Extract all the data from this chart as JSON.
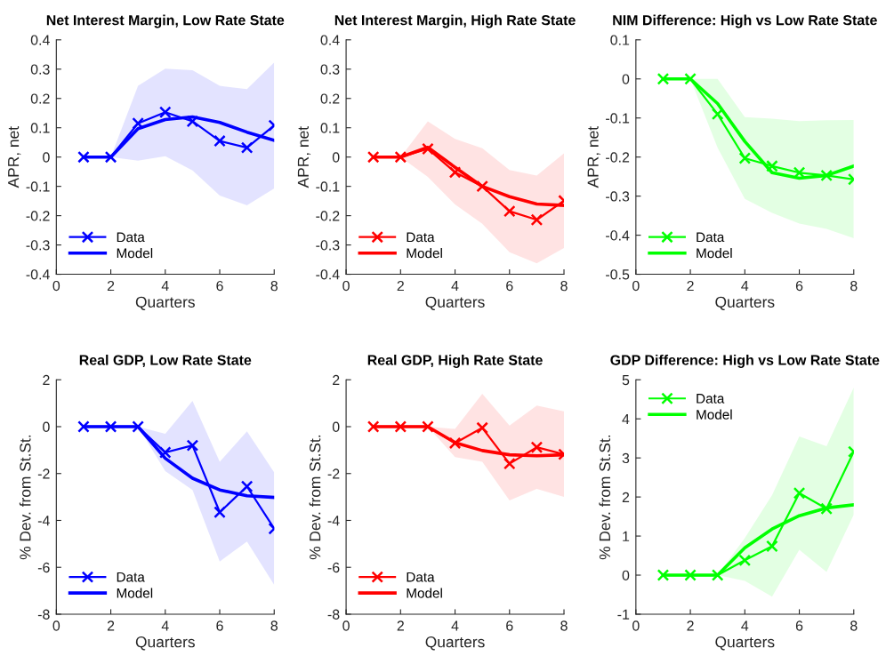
{
  "chart_data": [
    {
      "type": "line",
      "title": "Net Interest Margin, Low Rate State",
      "xlabel": "Quarters",
      "ylabel": "APR, net",
      "x": [
        1,
        2,
        3,
        4,
        5,
        6,
        7,
        8
      ],
      "xlim": [
        0,
        8
      ],
      "xticks": [
        0,
        2,
        4,
        6,
        8
      ],
      "ylim": [
        -0.4,
        0.4
      ],
      "yticks": [
        -0.4,
        -0.3,
        -0.2,
        -0.1,
        0,
        0.1,
        0.2,
        0.3,
        0.4
      ],
      "legend": "bottom left",
      "grid": false,
      "series": [
        {
          "name": "Data",
          "color": "#0000ff",
          "marker": "cross",
          "values": [
            0,
            0,
            0.115,
            0.153,
            0.122,
            0.055,
            0.032,
            0.108
          ]
        },
        {
          "name": "Model",
          "color": "#0000ff",
          "marker": "none",
          "values": [
            0,
            0,
            0.097,
            0.128,
            0.137,
            0.118,
            0.085,
            0.057
          ],
          "lower": [
            null,
            0,
            -0.012,
            0.003,
            -0.046,
            -0.131,
            -0.165,
            -0.107
          ],
          "upper": [
            null,
            0,
            0.243,
            0.302,
            0.296,
            0.243,
            0.232,
            0.323
          ]
        }
      ]
    },
    {
      "type": "line",
      "title": "Net Interest Margin, High Rate State",
      "xlabel": "Quarters",
      "ylabel": "APR, net",
      "x": [
        1,
        2,
        3,
        4,
        5,
        6,
        7,
        8
      ],
      "xlim": [
        0,
        8
      ],
      "xticks": [
        0,
        2,
        4,
        6,
        8
      ],
      "ylim": [
        -0.4,
        0.4
      ],
      "yticks": [
        -0.4,
        -0.3,
        -0.2,
        -0.1,
        0,
        0.1,
        0.2,
        0.3,
        0.4
      ],
      "legend": "bottom left",
      "grid": false,
      "series": [
        {
          "name": "Data",
          "color": "#ff0000",
          "marker": "cross",
          "values": [
            0,
            0,
            0.028,
            -0.052,
            -0.1,
            -0.185,
            -0.214,
            -0.149
          ]
        },
        {
          "name": "Model",
          "color": "#ff0000",
          "marker": "none",
          "values": [
            0,
            0,
            0.033,
            -0.035,
            -0.1,
            -0.135,
            -0.16,
            -0.165
          ],
          "lower": [
            null,
            0,
            -0.068,
            -0.162,
            -0.228,
            -0.325,
            -0.363,
            -0.31
          ],
          "upper": [
            null,
            0,
            0.122,
            0.062,
            0.03,
            -0.044,
            -0.063,
            0.013
          ]
        }
      ]
    },
    {
      "type": "line",
      "title": "NIM Difference: High vs Low Rate State",
      "xlabel": "Quarters",
      "ylabel": "APR, net",
      "x": [
        1,
        2,
        3,
        4,
        5,
        6,
        7,
        8
      ],
      "xlim": [
        0,
        8
      ],
      "xticks": [
        0,
        2,
        4,
        6,
        8
      ],
      "ylim": [
        -0.5,
        0.1
      ],
      "yticks": [
        -0.5,
        -0.4,
        -0.3,
        -0.2,
        -0.1,
        0,
        0.1
      ],
      "legend": "bottom left",
      "grid": false,
      "series": [
        {
          "name": "Data",
          "color": "#00ff00",
          "marker": "cross",
          "values": [
            0,
            0,
            -0.09,
            -0.203,
            -0.223,
            -0.24,
            -0.247,
            -0.257
          ]
        },
        {
          "name": "Model",
          "color": "#00ff00",
          "marker": "none",
          "values": [
            0,
            0,
            -0.063,
            -0.16,
            -0.24,
            -0.254,
            -0.247,
            -0.223
          ],
          "lower": [
            null,
            0,
            -0.176,
            -0.307,
            -0.343,
            -0.37,
            -0.384,
            -0.408
          ],
          "upper": [
            null,
            0,
            0,
            -0.098,
            -0.102,
            -0.108,
            -0.106,
            -0.105
          ]
        }
      ]
    },
    {
      "type": "line",
      "title": "Real GDP, Low Rate State",
      "xlabel": "Quarters",
      "ylabel": "% Dev. from St.St.",
      "x": [
        1,
        2,
        3,
        4,
        5,
        6,
        7,
        8
      ],
      "xlim": [
        0,
        8
      ],
      "xticks": [
        0,
        2,
        4,
        6,
        8
      ],
      "ylim": [
        -8,
        2
      ],
      "yticks": [
        -8,
        -6,
        -4,
        -2,
        0,
        2
      ],
      "legend": "bottom left",
      "grid": false,
      "series": [
        {
          "name": "Data",
          "color": "#0000ff",
          "marker": "cross",
          "values": [
            0,
            0,
            0,
            -1.1,
            -0.8,
            -3.65,
            -2.55,
            -4.35
          ]
        },
        {
          "name": "Model",
          "color": "#0000ff",
          "marker": "none",
          "values": [
            0,
            0,
            0,
            -1.35,
            -2.2,
            -2.7,
            -2.95,
            -3.02
          ],
          "lower": [
            null,
            null,
            0,
            -1.9,
            -2.7,
            -5.75,
            -4.9,
            -6.75
          ],
          "upper": [
            null,
            null,
            0,
            -0.3,
            1.1,
            -1.5,
            -0.2,
            -1.95
          ]
        }
      ]
    },
    {
      "type": "line",
      "title": "Real GDP, High Rate State",
      "xlabel": "Quarters",
      "ylabel": "% Dev. from St.St.",
      "x": [
        1,
        2,
        3,
        4,
        5,
        6,
        7,
        8
      ],
      "xlim": [
        0,
        8
      ],
      "xticks": [
        0,
        2,
        4,
        6,
        8
      ],
      "ylim": [
        -8,
        2
      ],
      "yticks": [
        -8,
        -6,
        -4,
        -2,
        0,
        2
      ],
      "legend": "bottom left",
      "grid": false,
      "series": [
        {
          "name": "Data",
          "color": "#ff0000",
          "marker": "cross",
          "values": [
            0,
            0,
            0,
            -0.7,
            -0.05,
            -1.58,
            -0.88,
            -1.18
          ]
        },
        {
          "name": "Model",
          "color": "#ff0000",
          "marker": "none",
          "values": [
            0,
            0,
            0,
            -0.68,
            -1.02,
            -1.2,
            -1.24,
            -1.2
          ],
          "lower": [
            null,
            null,
            0,
            -1.3,
            -1.5,
            -3.15,
            -2.65,
            -3.0
          ],
          "upper": [
            null,
            null,
            0,
            -0.1,
            1.4,
            0.05,
            0.9,
            0.65
          ]
        }
      ]
    },
    {
      "type": "line",
      "title": "GDP Difference: High vs Low Rate State",
      "xlabel": "Quarters",
      "ylabel": "% Dev. from St.St.",
      "x": [
        1,
        2,
        3,
        4,
        5,
        6,
        7,
        8
      ],
      "xlim": [
        0,
        8
      ],
      "xticks": [
        0,
        2,
        4,
        6,
        8
      ],
      "ylim": [
        -1,
        5
      ],
      "yticks": [
        -1,
        0,
        1,
        2,
        3,
        4,
        5
      ],
      "legend": "top left",
      "grid": false,
      "series": [
        {
          "name": "Data",
          "color": "#00ff00",
          "marker": "cross",
          "values": [
            0,
            0,
            0,
            0.38,
            0.74,
            2.1,
            1.7,
            3.16
          ]
        },
        {
          "name": "Model",
          "color": "#00ff00",
          "marker": "none",
          "values": [
            0,
            0,
            0,
            0.7,
            1.18,
            1.52,
            1.72,
            1.8
          ],
          "lower": [
            null,
            null,
            0,
            -0.15,
            -0.55,
            0.65,
            0.08,
            1.55
          ],
          "upper": [
            null,
            null,
            0,
            0.95,
            2.05,
            3.55,
            3.3,
            4.8
          ]
        }
      ]
    }
  ]
}
